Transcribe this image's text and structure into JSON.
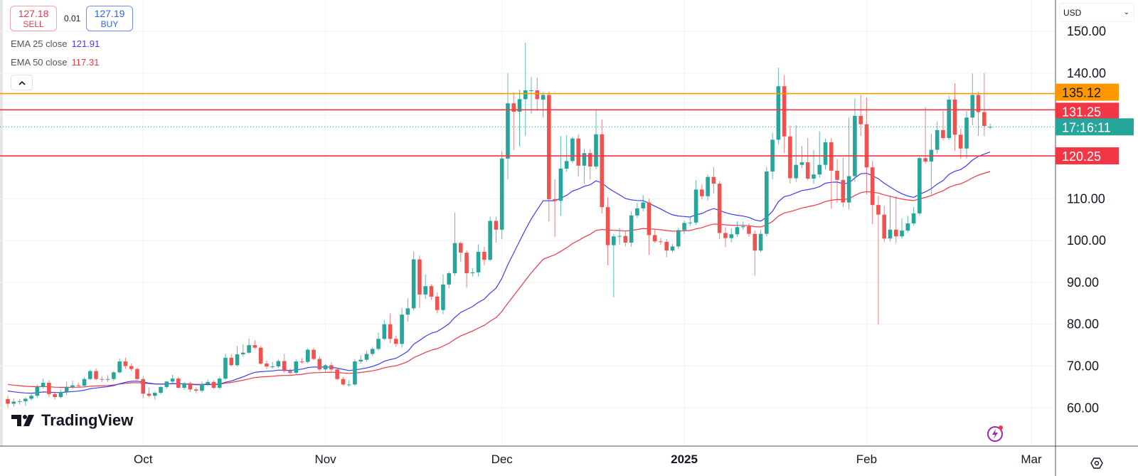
{
  "trade": {
    "sell_price": "127.18",
    "sell_label": "SELL",
    "spread": "0.01",
    "buy_price": "127.19",
    "buy_label": "BUY"
  },
  "legend": [
    {
      "label": "EMA 25 close",
      "value": "121.91",
      "color": "#3b3bff"
    },
    {
      "label": "EMA 50 close",
      "value": "117.31",
      "color": "#f23645"
    }
  ],
  "collapse_icon": "chevron-up-icon",
  "logo_text": "TradingView",
  "currency": "USD",
  "colors": {
    "up": "#26a69a",
    "down": "#ef5350",
    "ema25": "#3b3bff",
    "ema50": "#f23645",
    "grid": "#eef1f6",
    "orange": "#ff9800",
    "red_line": "#f23645",
    "teal": "#26a69a"
  },
  "chart_data": {
    "type": "candlestick",
    "start_date": "2024-09-08",
    "interval": "1D",
    "ylim": [
      50,
      150
    ],
    "y_ticks": [
      "150.00",
      "140.00",
      "110.00",
      "100.00",
      "90.00",
      "80.00",
      "70.00",
      "60.00"
    ],
    "y_tick_values": [
      150,
      140,
      110,
      100,
      90,
      80,
      70,
      60
    ],
    "x_ticks": [
      {
        "label": "Oct",
        "date": "2024-10-01",
        "bold": false
      },
      {
        "label": "Nov",
        "date": "2024-11-01",
        "bold": false
      },
      {
        "label": "Dec",
        "date": "2024-12-01",
        "bold": false
      },
      {
        "label": "2025",
        "date": "2025-01-01",
        "bold": true
      },
      {
        "label": "Feb",
        "date": "2025-02-01",
        "bold": false
      },
      {
        "label": "Mar",
        "date": "2025-03-01",
        "bold": false
      }
    ],
    "ema_seed": {
      "ema25": 64.3,
      "ema50": 65.8
    },
    "ohlc": [
      [
        62.1,
        62.9,
        60.1,
        61.0
      ],
      [
        61.0,
        62.3,
        60.3,
        61.5
      ],
      [
        61.5,
        62.1,
        60.8,
        61.6
      ],
      [
        61.6,
        62.5,
        60.5,
        62.2
      ],
      [
        62.2,
        63.3,
        61.8,
        62.9
      ],
      [
        62.9,
        65.6,
        62.5,
        65.0
      ],
      [
        65.0,
        67.0,
        64.6,
        66.0
      ],
      [
        66.0,
        66.6,
        62.6,
        63.3
      ],
      [
        63.3,
        63.9,
        62.0,
        62.6
      ],
      [
        62.6,
        64.4,
        62.3,
        63.8
      ],
      [
        63.8,
        66.3,
        63.0,
        65.0
      ],
      [
        65.0,
        66.5,
        64.5,
        65.4
      ],
      [
        65.4,
        66.0,
        64.8,
        65.3
      ],
      [
        65.3,
        67.3,
        65.0,
        66.9
      ],
      [
        66.9,
        69.2,
        66.6,
        68.8
      ],
      [
        68.8,
        69.4,
        66.6,
        66.9
      ],
      [
        66.9,
        67.6,
        66.2,
        66.8
      ],
      [
        66.8,
        67.8,
        66.2,
        66.9
      ],
      [
        66.9,
        68.8,
        66.5,
        68.5
      ],
      [
        68.5,
        71.8,
        68.2,
        71.1
      ],
      [
        71.1,
        72.0,
        69.3,
        70.0
      ],
      [
        70.0,
        70.6,
        68.8,
        69.3
      ],
      [
        69.3,
        69.6,
        66.6,
        66.9
      ],
      [
        66.9,
        67.6,
        62.3,
        63.4
      ],
      [
        63.4,
        64.8,
        62.6,
        62.9
      ],
      [
        62.9,
        64.0,
        62.0,
        63.6
      ],
      [
        63.6,
        65.2,
        63.3,
        65.0
      ],
      [
        65.0,
        66.4,
        64.6,
        66.3
      ],
      [
        66.3,
        67.9,
        66.0,
        67.0
      ],
      [
        67.0,
        67.4,
        64.6,
        64.8
      ],
      [
        64.8,
        66.2,
        64.3,
        65.9
      ],
      [
        65.9,
        66.2,
        63.8,
        64.4
      ],
      [
        64.4,
        64.9,
        63.5,
        64.1
      ],
      [
        64.1,
        66.3,
        63.7,
        65.7
      ],
      [
        65.7,
        66.8,
        65.3,
        66.2
      ],
      [
        66.2,
        66.6,
        64.5,
        64.8
      ],
      [
        64.8,
        67.5,
        64.4,
        67.0
      ],
      [
        67.0,
        73.0,
        66.6,
        72.0
      ],
      [
        72.0,
        72.8,
        69.9,
        70.2
      ],
      [
        70.2,
        74.8,
        69.9,
        72.8
      ],
      [
        72.8,
        75.2,
        72.3,
        73.2
      ],
      [
        73.2,
        76.6,
        72.9,
        75.0
      ],
      [
        75.0,
        76.2,
        74.0,
        74.4
      ],
      [
        74.4,
        74.8,
        70.3,
        70.6
      ],
      [
        70.6,
        71.3,
        69.3,
        69.9
      ],
      [
        69.9,
        71.0,
        69.4,
        69.9
      ],
      [
        69.9,
        71.6,
        69.6,
        71.2
      ],
      [
        71.2,
        72.9,
        68.4,
        68.8
      ],
      [
        68.8,
        69.4,
        68.0,
        68.4
      ],
      [
        68.4,
        71.6,
        68.0,
        71.1
      ],
      [
        71.1,
        71.9,
        70.6,
        71.0
      ],
      [
        71.0,
        74.3,
        70.6,
        73.9
      ],
      [
        73.9,
        74.4,
        71.4,
        71.7
      ],
      [
        71.7,
        72.3,
        68.8,
        69.2
      ],
      [
        69.2,
        70.5,
        68.6,
        70.2
      ],
      [
        70.2,
        70.9,
        68.7,
        69.2
      ],
      [
        69.2,
        69.6,
        66.6,
        66.9
      ],
      [
        66.9,
        67.4,
        65.3,
        65.6
      ],
      [
        65.6,
        66.6,
        65.1,
        65.6
      ],
      [
        65.6,
        71.6,
        65.3,
        71.1
      ],
      [
        71.1,
        72.6,
        70.6,
        71.5
      ],
      [
        71.5,
        73.6,
        71.0,
        72.9
      ],
      [
        72.9,
        74.6,
        72.4,
        74.1
      ],
      [
        74.1,
        78.0,
        73.7,
        76.5
      ],
      [
        76.5,
        81.0,
        76.2,
        80.0
      ],
      [
        80.0,
        82.6,
        75.5,
        76.5
      ],
      [
        76.5,
        77.3,
        74.6,
        75.3
      ],
      [
        75.3,
        83.9,
        74.4,
        82.3
      ],
      [
        82.3,
        86.2,
        80.6,
        83.8
      ],
      [
        83.8,
        97.4,
        83.3,
        95.5
      ],
      [
        95.5,
        96.4,
        83.9,
        87.1
      ],
      [
        87.1,
        91.9,
        86.0,
        89.1
      ],
      [
        89.1,
        89.6,
        85.8,
        86.6
      ],
      [
        86.6,
        87.6,
        82.6,
        83.4
      ],
      [
        83.4,
        91.9,
        82.4,
        89.5
      ],
      [
        89.5,
        92.6,
        88.6,
        92.2
      ],
      [
        92.2,
        106.7,
        91.6,
        99.4
      ],
      [
        99.4,
        99.8,
        94.9,
        97.1
      ],
      [
        97.1,
        97.7,
        88.7,
        92.2
      ],
      [
        92.2,
        93.4,
        91.4,
        92.4
      ],
      [
        92.4,
        99.1,
        91.4,
        97.3
      ],
      [
        97.3,
        98.5,
        94.1,
        95.4
      ],
      [
        95.4,
        105.7,
        95.1,
        104.7
      ],
      [
        104.7,
        105.7,
        99.5,
        102.6
      ],
      [
        102.6,
        121.3,
        100.3,
        119.6
      ],
      [
        119.6,
        140.0,
        114.7,
        132.8
      ],
      [
        132.8,
        135.4,
        121.6,
        130.8
      ],
      [
        130.8,
        136.0,
        122.5,
        133.8
      ],
      [
        133.8,
        147.3,
        125.0,
        135.9
      ],
      [
        135.9,
        139.1,
        130.3,
        135.9
      ],
      [
        135.9,
        138.9,
        131.0,
        133.8
      ],
      [
        133.7,
        135.5,
        129.4,
        134.8
      ],
      [
        134.8,
        135.6,
        104.6,
        109.9
      ],
      [
        109.9,
        114.6,
        100.9,
        109.5
      ],
      [
        109.5,
        125.0,
        105.9,
        117.2
      ],
      [
        117.2,
        125.2,
        116.4,
        119.0
      ],
      [
        119.0,
        124.8,
        118.5,
        124.4
      ],
      [
        124.4,
        125.4,
        115.3,
        117.9
      ],
      [
        117.9,
        121.9,
        113.6,
        120.9
      ],
      [
        120.9,
        121.8,
        114.6,
        117.7
      ],
      [
        117.7,
        131.4,
        117.1,
        125.4
      ],
      [
        125.4,
        128.9,
        106.5,
        108.0
      ],
      [
        108.0,
        110.3,
        94.1,
        98.9
      ],
      [
        98.9,
        101.6,
        86.4,
        101.0
      ],
      [
        101.0,
        103.0,
        99.0,
        101.1
      ],
      [
        101.1,
        102.2,
        98.6,
        99.5
      ],
      [
        99.5,
        107.0,
        98.5,
        106.0
      ],
      [
        106.0,
        109.0,
        105.4,
        107.7
      ],
      [
        107.7,
        110.9,
        107.0,
        109.1
      ],
      [
        109.1,
        110.0,
        96.6,
        101.3
      ],
      [
        101.3,
        102.6,
        99.4,
        99.8
      ],
      [
        99.8,
        100.6,
        99.0,
        99.7
      ],
      [
        99.7,
        100.4,
        96.0,
        97.6
      ],
      [
        97.6,
        99.2,
        97.2,
        98.6
      ],
      [
        98.6,
        103.0,
        98.1,
        102.5
      ],
      [
        102.5,
        104.8,
        101.6,
        104.2
      ],
      [
        104.2,
        105.6,
        103.6,
        104.3
      ],
      [
        104.3,
        114.5,
        103.8,
        112.2
      ],
      [
        112.2,
        113.4,
        109.8,
        110.6
      ],
      [
        110.6,
        115.8,
        109.6,
        115.2
      ],
      [
        115.2,
        117.6,
        111.2,
        113.6
      ],
      [
        113.6,
        114.2,
        100.4,
        101.8
      ],
      [
        101.8,
        103.2,
        98.4,
        100.6
      ],
      [
        100.6,
        102.9,
        99.6,
        101.5
      ],
      [
        101.5,
        104.6,
        100.9,
        103.2
      ],
      [
        103.2,
        104.6,
        102.6,
        103.4
      ],
      [
        103.4,
        104.1,
        100.9,
        101.6
      ],
      [
        101.6,
        102.4,
        91.6,
        97.6
      ],
      [
        97.6,
        102.6,
        97.2,
        101.6
      ],
      [
        101.6,
        117.6,
        101.0,
        116.5
      ],
      [
        116.5,
        125.8,
        114.6,
        124.1
      ],
      [
        124.1,
        141.3,
        123.0,
        136.9
      ],
      [
        136.9,
        139.5,
        121.0,
        124.9
      ],
      [
        124.9,
        127.5,
        113.6,
        114.9
      ],
      [
        114.9,
        127.6,
        114.0,
        118.1
      ],
      [
        118.1,
        122.6,
        117.3,
        118.7
      ],
      [
        118.7,
        124.5,
        114.4,
        114.8
      ],
      [
        114.8,
        121.6,
        113.6,
        115.8
      ],
      [
        115.8,
        126.1,
        115.0,
        118.1
      ],
      [
        118.1,
        124.4,
        117.0,
        123.5
      ],
      [
        123.5,
        124.5,
        107.6,
        116.7
      ],
      [
        116.7,
        119.5,
        109.0,
        114.5
      ],
      [
        114.5,
        119.8,
        108.0,
        109.1
      ],
      [
        109.1,
        129.4,
        107.5,
        115.4
      ],
      [
        115.4,
        134.0,
        114.0,
        129.8
      ],
      [
        129.8,
        134.8,
        125.0,
        127.8
      ],
      [
        127.8,
        134.2,
        111.0,
        117.5
      ],
      [
        117.5,
        119.0,
        103.9,
        108.5
      ],
      [
        108.5,
        110.7,
        79.9,
        106.2
      ],
      [
        106.2,
        108.3,
        99.6,
        100.5
      ],
      [
        100.5,
        110.6,
        99.8,
        102.6
      ],
      [
        102.6,
        110.6,
        99.4,
        101.0
      ],
      [
        101.0,
        105.3,
        100.5,
        102.4
      ],
      [
        102.4,
        105.9,
        102.0,
        104.1
      ],
      [
        104.1,
        108.0,
        103.6,
        106.5
      ],
      [
        106.5,
        120.0,
        106.0,
        119.7
      ],
      [
        119.7,
        131.9,
        118.4,
        118.9
      ],
      [
        118.9,
        125.5,
        111.0,
        121.7
      ],
      [
        121.7,
        128.5,
        120.8,
        126.4
      ],
      [
        126.4,
        131.0,
        124.0,
        124.5
      ],
      [
        124.5,
        134.6,
        124.0,
        133.7
      ],
      [
        133.7,
        137.6,
        121.4,
        125.3
      ],
      [
        125.3,
        126.8,
        119.6,
        122.0
      ],
      [
        122.0,
        131.0,
        119.6,
        129.4
      ],
      [
        129.4,
        139.9,
        127.6,
        134.8
      ],
      [
        134.8,
        135.6,
        125.0,
        130.7
      ],
      [
        130.7,
        140.0,
        125.0,
        127.4
      ],
      [
        127.0,
        127.9,
        126.6,
        127.18
      ]
    ],
    "horizontal_lines": [
      {
        "name": "resistance-line-orange",
        "value": 135.12,
        "label": "135.12",
        "color": "#ff9800",
        "text_color": "#131722"
      },
      {
        "name": "level-line-131",
        "value": 131.25,
        "label": "131.25",
        "color": "#f23645",
        "text_color": "#ffffff"
      },
      {
        "name": "level-line-120",
        "value": 120.25,
        "label": "120.25",
        "color": "#f23645",
        "text_color": "#ffffff"
      }
    ],
    "last_price": 127.18,
    "countdown": "17:16:11"
  }
}
